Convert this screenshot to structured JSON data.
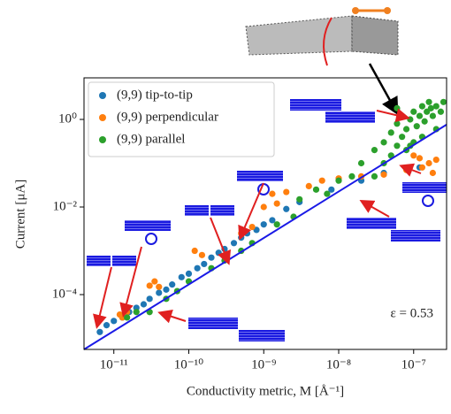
{
  "chart_data": {
    "type": "scatter",
    "xlabel": "Conductivity metric, M [Å⁻¹]",
    "ylabel": "Current [μA]",
    "annotation": "ε = 0.53",
    "xscale": "log",
    "yscale": "log",
    "legend": "upper left",
    "xlim": [
      4e-12,
      2.75e-07
    ],
    "ylim": [
      5.6e-06,
      8.9
    ],
    "xticks": [
      {
        "value": 1e-11,
        "label": "10⁻¹¹"
      },
      {
        "value": 1e-10,
        "label": "10⁻¹⁰"
      },
      {
        "value": 1e-09,
        "label": "10⁻⁹"
      },
      {
        "value": 1e-08,
        "label": "10⁻⁸"
      },
      {
        "value": 1e-07,
        "label": "10⁻⁷"
      }
    ],
    "yticks": [
      {
        "value": 0.0001,
        "label": "10⁻⁴"
      },
      {
        "value": 0.01,
        "label": "10⁻²"
      },
      {
        "value": 1,
        "label": "10⁰"
      }
    ],
    "fit": {
      "x": [
        4e-12,
        2.75e-07
      ],
      "y": [
        5.6e-06,
        0.76
      ],
      "color": "#1a1ae6"
    },
    "series": [
      {
        "name": "(9,9) tip-to-tip",
        "color": "#1f77b4",
        "x": [
          6.5e-12,
          8e-12,
          1e-11,
          1.3e-11,
          1.6e-11,
          2e-11,
          2.5e-11,
          3e-11,
          4e-11,
          5e-11,
          6e-11,
          8e-11,
          1e-10,
          1.3e-10,
          1.6e-10,
          2e-10,
          2.5e-10,
          3e-10,
          4e-10,
          5e-10,
          6e-10,
          8e-10,
          1e-09,
          1.3e-09,
          2e-09,
          3e-09,
          8e-09,
          2e-08,
          4e-08,
          1.2e-07
        ],
        "values": [
          1.4e-05,
          2e-05,
          2.5e-05,
          3e-05,
          4e-05,
          5e-05,
          6e-05,
          8e-05,
          0.00011,
          0.00013,
          0.00017,
          0.00025,
          0.0003,
          0.0004,
          0.0005,
          0.0007,
          0.0009,
          0.0011,
          0.0015,
          0.002,
          0.0025,
          0.003,
          0.004,
          0.005,
          0.009,
          0.013,
          0.025,
          0.04,
          0.06,
          0.08
        ]
      },
      {
        "name": "(9,9) perpendicular",
        "color": "#ff7f0e",
        "x": [
          1.3e-11,
          1.5e-11,
          1.2e-11,
          3e-11,
          3.5e-11,
          4e-11,
          1.5e-10,
          1.2e-10,
          5e-10,
          7e-10,
          1e-09,
          1.5e-09,
          1.3e-09,
          2e-09,
          4e-09,
          6e-09,
          1e-08,
          2e-08,
          4e-08,
          8e-08,
          1.3e-07,
          1.6e-07,
          2e-07,
          1e-07,
          1.8e-07,
          1.2e-07
        ],
        "values": [
          3e-05,
          4e-05,
          3.5e-05,
          0.00016,
          0.0002,
          0.00015,
          0.0008,
          0.001,
          0.0025,
          0.0035,
          0.01,
          0.012,
          0.02,
          0.022,
          0.03,
          0.04,
          0.045,
          0.05,
          0.055,
          0.07,
          0.08,
          0.1,
          0.12,
          0.15,
          0.06,
          0.13
        ]
      },
      {
        "name": "(9,9) parallel",
        "color": "#2ca02c",
        "x": [
          1.5e-11,
          2e-11,
          3e-11,
          5e-11,
          7e-11,
          1e-10,
          2e-10,
          3e-10,
          5e-10,
          7e-10,
          1.5e-09,
          2.5e-09,
          3e-09,
          5e-09,
          7e-09,
          1e-08,
          1.5e-08,
          2e-08,
          3e-08,
          3e-08,
          4e-08,
          4e-08,
          5e-08,
          5e-08,
          6e-08,
          6e-08,
          7e-08,
          7e-08,
          8e-08,
          8e-08,
          9e-08,
          1e-07,
          1e-07,
          1.1e-07,
          1.2e-07,
          1.3e-07,
          1.4e-07,
          1.5e-07,
          1.6e-07,
          1.7e-07,
          1.8e-07,
          2e-07,
          2e-07,
          2.3e-07,
          2.5e-07,
          9e-08,
          6e-08,
          1.3e-07
        ],
        "values": [
          3e-05,
          4e-05,
          4e-05,
          8e-05,
          0.00012,
          0.0002,
          0.0004,
          0.0006,
          0.001,
          0.0015,
          0.004,
          0.006,
          0.015,
          0.025,
          0.02,
          0.04,
          0.05,
          0.1,
          0.05,
          0.2,
          0.1,
          0.3,
          0.15,
          0.5,
          0.25,
          0.8,
          0.4,
          1.2,
          0.6,
          0.2,
          1,
          1.5,
          0.3,
          0.7,
          1.2,
          2,
          0.9,
          1.5,
          2.5,
          1.8,
          1.2,
          2,
          0.6,
          1.5,
          2.5,
          0.25,
          1.8,
          0.4
        ]
      }
    ]
  }
}
